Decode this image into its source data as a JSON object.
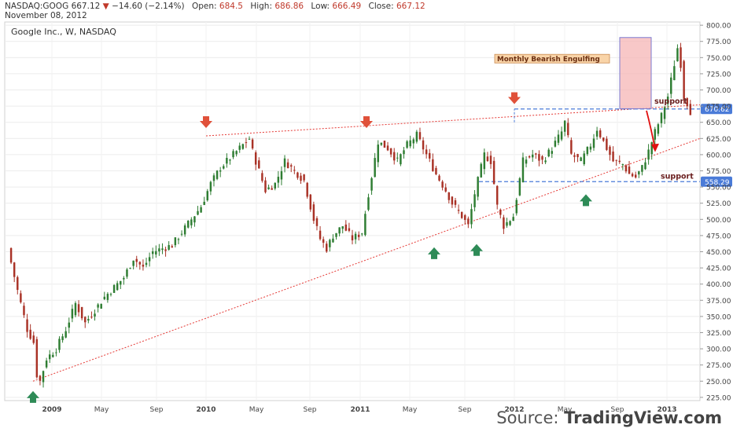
{
  "header": {
    "symbol": "NASDAQ:GOOG",
    "last": "667.12",
    "change_arrow": "▼",
    "change": "−14.60 (−2.14%)",
    "open_label": "Open:",
    "open": "684.5",
    "high_label": "High:",
    "high": "686.86",
    "low_label": "Low:",
    "low": "666.49",
    "close_label": "Close:",
    "close": "667.12",
    "date": "November 08, 2012"
  },
  "source": {
    "prefix": "Source: ",
    "name": "TradingView.com"
  },
  "colors": {
    "up": "#2e7d32",
    "down": "#a93226",
    "trend": "#e53935",
    "support": "#4a7bd8",
    "arrow_up": "#2e8b57",
    "arrow_down": "#e0513a",
    "box_fill": "#f6b6b6",
    "box_edge": "#7b7bd0",
    "label_fill": "#f9d4a8"
  },
  "chart_data": {
    "type": "candlestick",
    "title": "Google Inc., W, NASDAQ",
    "ylim": [
      220,
      805
    ],
    "y_ticks": [
      "225.00",
      "250.00",
      "275.00",
      "300.00",
      "325.00",
      "350.00",
      "375.00",
      "400.00",
      "425.00",
      "450.00",
      "475.00",
      "500.00",
      "525.00",
      "550.00",
      "575.00",
      "600.00",
      "625.00",
      "650.00",
      "675.00",
      "700.00",
      "725.00",
      "750.00",
      "775.00",
      "800.00"
    ],
    "x_ticks": [
      "2009",
      "May",
      "Sep",
      "2010",
      "May",
      "Sep",
      "2011",
      "May",
      "Sep",
      "2012",
      "May",
      "Sep",
      "2013"
    ],
    "price_labels": {
      "upper": "670.62",
      "lower": "558.29"
    },
    "annotations": {
      "pattern": "Monthly Bearish Engulfing",
      "support": "support"
    },
    "weekly_close_path": [
      [
        0,
        455
      ],
      [
        3,
        390
      ],
      [
        6,
        330
      ],
      [
        8,
        310
      ],
      [
        9,
        260
      ],
      [
        10,
        250
      ],
      [
        12,
        285
      ],
      [
        15,
        300
      ],
      [
        18,
        330
      ],
      [
        21,
        370
      ],
      [
        24,
        340
      ],
      [
        27,
        360
      ],
      [
        30,
        380
      ],
      [
        33,
        395
      ],
      [
        36,
        410
      ],
      [
        39,
        440
      ],
      [
        42,
        425
      ],
      [
        45,
        450
      ],
      [
        48,
        455
      ],
      [
        51,
        460
      ],
      [
        54,
        480
      ],
      [
        57,
        500
      ],
      [
        60,
        520
      ],
      [
        63,
        555
      ],
      [
        66,
        580
      ],
      [
        69,
        595
      ],
      [
        72,
        610
      ],
      [
        75,
        625
      ],
      [
        76,
        605
      ],
      [
        78,
        575
      ],
      [
        80,
        545
      ],
      [
        83,
        555
      ],
      [
        86,
        590
      ],
      [
        89,
        575
      ],
      [
        92,
        560
      ],
      [
        95,
        500
      ],
      [
        97,
        470
      ],
      [
        99,
        455
      ],
      [
        101,
        475
      ],
      [
        104,
        490
      ],
      [
        107,
        470
      ],
      [
        110,
        480
      ],
      [
        112,
        540
      ],
      [
        115,
        620
      ],
      [
        118,
        610
      ],
      [
        121,
        590
      ],
      [
        124,
        615
      ],
      [
        127,
        630
      ],
      [
        130,
        600
      ],
      [
        133,
        570
      ],
      [
        136,
        545
      ],
      [
        138,
        525
      ],
      [
        141,
        505
      ],
      [
        143,
        490
      ],
      [
        145,
        540
      ],
      [
        148,
        600
      ],
      [
        150,
        590
      ],
      [
        152,
        520
      ],
      [
        154,
        490
      ],
      [
        157,
        505
      ],
      [
        160,
        590
      ],
      [
        163,
        600
      ],
      [
        166,
        590
      ],
      [
        169,
        610
      ],
      [
        172,
        635
      ],
      [
        173,
        650
      ],
      [
        175,
        600
      ],
      [
        178,
        590
      ],
      [
        181,
        615
      ],
      [
        183,
        640
      ],
      [
        185,
        620
      ],
      [
        188,
        590
      ],
      [
        191,
        585
      ],
      [
        193,
        570
      ],
      [
        195,
        565
      ],
      [
        197,
        580
      ],
      [
        199,
        605
      ],
      [
        201,
        635
      ],
      [
        203,
        660
      ],
      [
        205,
        690
      ],
      [
        207,
        740
      ],
      [
        208,
        765
      ],
      [
        209,
        740
      ],
      [
        210,
        690
      ],
      [
        211,
        680
      ],
      [
        212,
        667
      ]
    ]
  }
}
